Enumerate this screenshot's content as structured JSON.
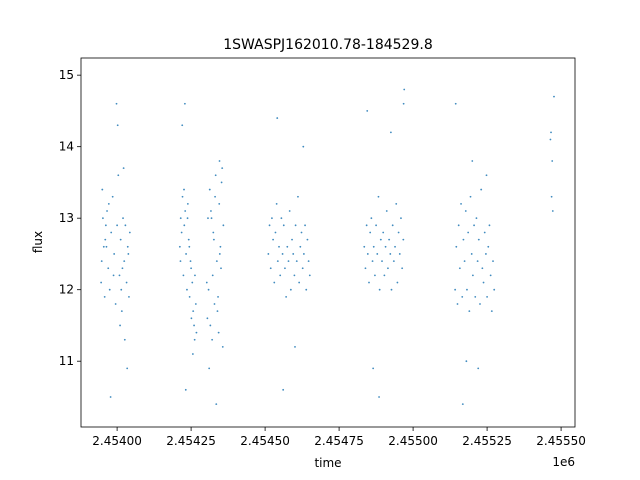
{
  "chart_data": {
    "type": "scatter",
    "title": "1SWASPJ162010.78-184529.8",
    "xlabel": "time",
    "ylabel": "flux",
    "x_offset": "1e6",
    "color": "#1f77b4",
    "xlim": [
      2453878,
      2455547
    ],
    "ylim": [
      10.08,
      15.24
    ],
    "xticks": [
      {
        "value": 2454000,
        "label": "2.45400"
      },
      {
        "value": 2454250,
        "label": "2.45425"
      },
      {
        "value": 2454500,
        "label": "2.45450"
      },
      {
        "value": 2454750,
        "label": "2.45475"
      },
      {
        "value": 2455000,
        "label": "2.45500"
      },
      {
        "value": 2455250,
        "label": "2.45525"
      },
      {
        "value": 2455500,
        "label": "2.45550"
      }
    ],
    "yticks": [
      11,
      12,
      13,
      14,
      15
    ],
    "x": [
      2453946,
      2453950,
      2453955,
      2453958,
      2453962,
      2453966,
      2453970,
      2453975,
      2453980,
      2453985,
      2453990,
      2453995,
      2454000,
      2454004,
      2454008,
      2454012,
      2454016,
      2454020,
      2454024,
      2454028,
      2454032,
      2454036,
      2454040,
      2454043,
      2453948,
      2453960,
      2453972,
      2453988,
      2454002,
      2454014,
      2454026,
      2454038,
      2453952,
      2453978,
      2453998,
      2454010,
      2454022,
      2454034,
      2453964,
      2454018,
      2454212,
      2454215,
      2454218,
      2454221,
      2454224,
      2454227,
      2454230,
      2454233,
      2454236,
      2454239,
      2454242,
      2454245,
      2454248,
      2454251,
      2454254,
      2454257,
      2454260,
      2454263,
      2454266,
      2454268,
      2454214,
      2454226,
      2454238,
      2454250,
      2454262,
      2454220,
      2454232,
      2454244,
      2454256,
      2454229,
      2454305,
      2454309,
      2454313,
      2454317,
      2454321,
      2454325,
      2454329,
      2454333,
      2454337,
      2454341,
      2454345,
      2454349,
      2454353,
      2454357,
      2454359,
      2454307,
      2454315,
      2454323,
      2454331,
      2454339,
      2454347,
      2454355,
      2454311,
      2454327,
      2454343,
      2454319,
      2454335,
      2454351,
      2454303,
      2454346,
      2454511,
      2454515,
      2454519,
      2454523,
      2454527,
      2454531,
      2454535,
      2454539,
      2454543,
      2454547,
      2454551,
      2454555,
      2454559,
      2454563,
      2454567,
      2454571,
      2454575,
      2454579,
      2454583,
      2454587,
      2454591,
      2454595,
      2454599,
      2454603,
      2454607,
      2454611,
      2454615,
      2454619,
      2454623,
      2454627,
      2454631,
      2454635,
      2454639,
      2454643,
      2454647,
      2454651,
      2454541,
      2454561,
      2454601,
      2454629,
      2454835,
      2454839,
      2454843,
      2454847,
      2454851,
      2454855,
      2454859,
      2454863,
      2454867,
      2454871,
      2454875,
      2454879,
      2454883,
      2454887,
      2454891,
      2454895,
      2454899,
      2454903,
      2454907,
      2454911,
      2454915,
      2454919,
      2454923,
      2454927,
      2454931,
      2454935,
      2454939,
      2454943,
      2454947,
      2454951,
      2454955,
      2454959,
      2454963,
      2454967,
      2454970,
      2454845,
      2454865,
      2454885,
      2454925,
      2454968,
      2455142,
      2455146,
      2455150,
      2455154,
      2455158,
      2455162,
      2455166,
      2455170,
      2455174,
      2455178,
      2455182,
      2455186,
      2455190,
      2455194,
      2455198,
      2455202,
      2455206,
      2455210,
      2455214,
      2455218,
      2455222,
      2455226,
      2455230,
      2455234,
      2455238,
      2455242,
      2455246,
      2455250,
      2455254,
      2455258,
      2455262,
      2455266,
      2455270,
      2455274,
      2455144,
      2455168,
      2455180,
      2455200,
      2455220,
      2455248,
      2455464,
      2455466,
      2455468,
      2455470,
      2455472,
      2455476
    ],
    "values": [
      12.1,
      13.4,
      12.6,
      11.9,
      12.9,
      13.1,
      12.3,
      12.0,
      12.8,
      13.3,
      12.5,
      11.8,
      12.9,
      13.6,
      12.2,
      12.7,
      11.7,
      13.0,
      12.4,
      12.9,
      12.1,
      12.6,
      11.9,
      12.8,
      12.4,
      12.7,
      13.2,
      12.2,
      14.3,
      12.0,
      11.3,
      12.5,
      13.0,
      10.5,
      14.6,
      11.5,
      13.7,
      10.9,
      12.6,
      12.3,
      12.6,
      13.0,
      12.8,
      13.3,
      12.2,
      12.9,
      13.1,
      12.5,
      12.0,
      13.2,
      12.7,
      11.9,
      12.4,
      11.6,
      12.1,
      11.7,
      11.5,
      12.2,
      11.8,
      11.4,
      12.4,
      13.4,
      13.0,
      12.3,
      11.3,
      14.3,
      10.6,
      12.6,
      11.1,
      14.6,
      11.6,
      12.0,
      13.4,
      13.1,
      11.3,
      12.8,
      11.8,
      13.6,
      12.4,
      11.9,
      13.2,
      12.6,
      13.5,
      11.2,
      12.9,
      13.0,
      11.5,
      12.2,
      13.3,
      11.7,
      12.5,
      13.7,
      10.9,
      12.7,
      11.4,
      13.0,
      10.4,
      12.3,
      12.1,
      13.8,
      12.5,
      12.9,
      12.3,
      13.0,
      12.7,
      12.1,
      12.8,
      13.2,
      12.4,
      12.6,
      12.2,
      13.0,
      12.5,
      12.9,
      12.3,
      11.9,
      12.6,
      12.4,
      13.1,
      12.0,
      12.7,
      12.5,
      12.2,
      12.9,
      12.4,
      13.3,
      12.1,
      12.6,
      12.8,
      12.3,
      12.5,
      12.9,
      12.0,
      12.7,
      12.4,
      12.2,
      14.4,
      10.6,
      11.2,
      14.0,
      12.6,
      12.3,
      12.9,
      12.5,
      12.1,
      12.8,
      13.0,
      12.4,
      12.6,
      12.2,
      12.9,
      12.5,
      13.3,
      12.0,
      12.7,
      12.4,
      12.8,
      12.2,
      12.6,
      13.1,
      12.3,
      12.7,
      12.5,
      12.0,
      12.9,
      12.4,
      12.6,
      13.2,
      12.1,
      12.8,
      12.5,
      13.0,
      12.3,
      12.7,
      14.8,
      14.5,
      10.9,
      10.5,
      14.2,
      14.6,
      12.0,
      12.6,
      11.8,
      12.9,
      12.3,
      13.2,
      11.9,
      12.7,
      12.4,
      13.1,
      12.0,
      12.8,
      11.7,
      13.3,
      12.5,
      12.2,
      12.9,
      11.9,
      13.0,
      12.4,
      12.7,
      11.8,
      13.4,
      12.3,
      12.1,
      12.8,
      12.5,
      11.9,
      12.6,
      12.9,
      12.2,
      11.7,
      12.4,
      12.0,
      14.6,
      10.4,
      11.0,
      13.8,
      10.9,
      13.6,
      14.1,
      14.2,
      13.3,
      13.8,
      13.1,
      14.7
    ]
  }
}
